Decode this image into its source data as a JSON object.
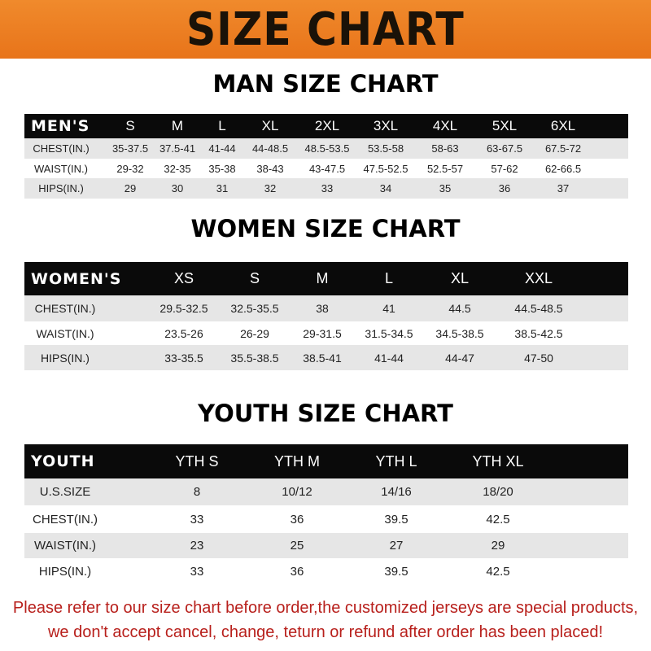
{
  "title": "SIZE CHART",
  "men": {
    "title": "MAN SIZE CHART",
    "header": [
      "MEN'S",
      "S",
      "M",
      "L",
      "XL",
      "2XL",
      "3XL",
      "4XL",
      "5XL",
      "6XL"
    ],
    "rows": [
      [
        "CHEST(IN.)",
        "35-37.5",
        "37.5-41",
        "41-44",
        "44-48.5",
        "48.5-53.5",
        "53.5-58",
        "58-63",
        "63-67.5",
        "67.5-72"
      ],
      [
        "WAIST(IN.)",
        "29-32",
        "32-35",
        "35-38",
        "38-43",
        "43-47.5",
        "47.5-52.5",
        "52.5-57",
        "57-62",
        "62-66.5"
      ],
      [
        "HIPS(IN.)",
        "29",
        "30",
        "31",
        "32",
        "33",
        "34",
        "35",
        "36",
        "37"
      ]
    ]
  },
  "women": {
    "title": "WOMEN SIZE CHART",
    "header": [
      "WOMEN'S",
      "XS",
      "S",
      "M",
      "L",
      "XL",
      "XXL"
    ],
    "rows": [
      [
        "CHEST(IN.)",
        "29.5-32.5",
        "32.5-35.5",
        "38",
        "41",
        "44.5",
        "44.5-48.5"
      ],
      [
        "WAIST(IN.)",
        "23.5-26",
        "26-29",
        "29-31.5",
        "31.5-34.5",
        "34.5-38.5",
        "38.5-42.5"
      ],
      [
        "HIPS(IN.)",
        "33-35.5",
        "35.5-38.5",
        "38.5-41",
        "41-44",
        "44-47",
        "47-50"
      ]
    ]
  },
  "youth": {
    "title": "YOUTH SIZE CHART",
    "header": [
      "YOUTH",
      "YTH S",
      "YTH M",
      "YTH L",
      "YTH XL"
    ],
    "rows": [
      [
        "U.S.SIZE",
        "8",
        "10/12",
        "14/16",
        "18/20"
      ],
      [
        "CHEST(IN.)",
        "33",
        "36",
        "39.5",
        "42.5"
      ],
      [
        "WAIST(IN.)",
        "23",
        "25",
        "27",
        "29"
      ],
      [
        "HIPS(IN.)",
        "33",
        "36",
        "39.5",
        "42.5"
      ]
    ]
  },
  "notice": [
    "Please refer to our size chart before order,the customized jerseys are special products,",
    "we don't accept cancel, change, teturn or refund after order has been placed!"
  ],
  "colors": {
    "banner": "#ec7e22",
    "header_row": "#0a0a0a",
    "notice": "#b8201c"
  }
}
